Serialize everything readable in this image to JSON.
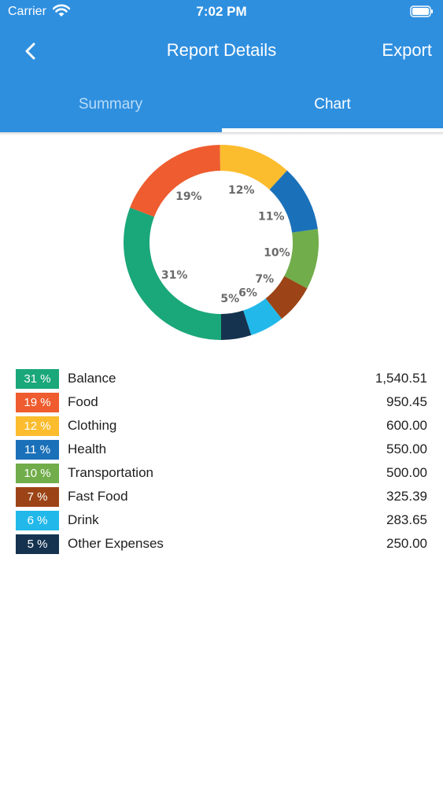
{
  "status_bar": {
    "carrier": "Carrier",
    "time": "7:02 PM"
  },
  "nav": {
    "title": "Report Details",
    "back_icon": "chevron-left-icon",
    "export_label": "Export"
  },
  "tabs": [
    {
      "label": "Summary",
      "selected": false
    },
    {
      "label": "Chart",
      "selected": true
    }
  ],
  "colors": {
    "header": "#2f8fdf",
    "balance": "#1aa779",
    "food": "#ee5c2f",
    "clothing": "#fbbc2e",
    "health": "#1b71b9",
    "transportation": "#71ad4a",
    "fast_food": "#9c4417",
    "drink": "#22b9ea",
    "other_expenses": "#15334f"
  },
  "chart_data": {
    "type": "pie",
    "donut": true,
    "start_angle_deg": 90,
    "direction": "clockwise",
    "categories": [
      "Balance",
      "Food",
      "Clothing",
      "Health",
      "Transportation",
      "Fast Food",
      "Drink",
      "Other Expenses"
    ],
    "values": [
      1540.51,
      950.45,
      600.0,
      550.0,
      500.0,
      325.39,
      283.65,
      250.0
    ],
    "percent_labels": [
      "31%",
      "19%",
      "12%",
      "11%",
      "10%",
      "7%",
      "6%",
      "5%"
    ],
    "colors": [
      "#1aa779",
      "#ee5c2f",
      "#fbbc2e",
      "#1b71b9",
      "#71ad4a",
      "#9c4417",
      "#22b9ea",
      "#15334f"
    ]
  },
  "legend": [
    {
      "percent": "31 %",
      "name": "Balance",
      "amount": "1,540.51",
      "color": "#1aa779"
    },
    {
      "percent": "19 %",
      "name": "Food",
      "amount": "950.45",
      "color": "#ee5c2f"
    },
    {
      "percent": "12 %",
      "name": "Clothing",
      "amount": "600.00",
      "color": "#fbbc2e"
    },
    {
      "percent": "11 %",
      "name": "Health",
      "amount": "550.00",
      "color": "#1b71b9"
    },
    {
      "percent": "10 %",
      "name": "Transportation",
      "amount": "500.00",
      "color": "#71ad4a"
    },
    {
      "percent": "7 %",
      "name": "Fast Food",
      "amount": "325.39",
      "color": "#9c4417"
    },
    {
      "percent": "6 %",
      "name": "Drink",
      "amount": "283.65",
      "color": "#22b9ea"
    },
    {
      "percent": "5 %",
      "name": "Other Expenses",
      "amount": "250.00",
      "color": "#15334f"
    }
  ]
}
